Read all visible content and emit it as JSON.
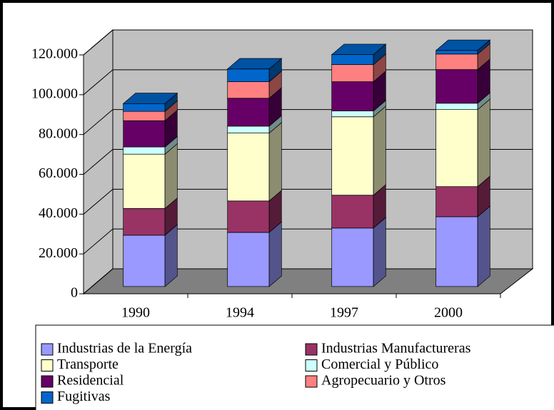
{
  "chart_data": {
    "type": "bar3d_stacked",
    "categories": [
      "1990",
      "1994",
      "1997",
      "2000"
    ],
    "series": [
      {
        "name": "Industrias de la Energía",
        "color": "#9999ff",
        "values": [
          25800,
          27200,
          29400,
          35100
        ]
      },
      {
        "name": "Industrias Manufactureras",
        "color": "#993366",
        "values": [
          13400,
          15800,
          16500,
          15100
        ]
      },
      {
        "name": "Transporte",
        "color": "#ffffcc",
        "values": [
          27300,
          34100,
          39400,
          38700
        ]
      },
      {
        "name": "Comercial y Público",
        "color": "#ccffff",
        "values": [
          3600,
          3500,
          2900,
          3200
        ]
      },
      {
        "name": "Residencial",
        "color": "#660066",
        "values": [
          13200,
          14000,
          14700,
          16900
        ]
      },
      {
        "name": "Agropecuario y Otros",
        "color": "#ff8080",
        "values": [
          4700,
          8300,
          8600,
          7800
        ]
      },
      {
        "name": "Fugitivas",
        "color": "#0066cc",
        "values": [
          3900,
          6400,
          5000,
          1800
        ]
      }
    ],
    "ylim": [
      0,
      120000
    ],
    "yticks": [
      0,
      {
        "value": 20000,
        "label": "20.000"
      },
      {
        "value": 40000,
        "label": "40.000"
      },
      {
        "value": 60000,
        "label": "60.000"
      },
      {
        "value": 80000,
        "label": "80.000"
      },
      {
        "value": 100000,
        "label": "100.000"
      },
      {
        "value": 120000,
        "label": "120.000"
      }
    ],
    "grid": true,
    "legend": "bottom"
  }
}
